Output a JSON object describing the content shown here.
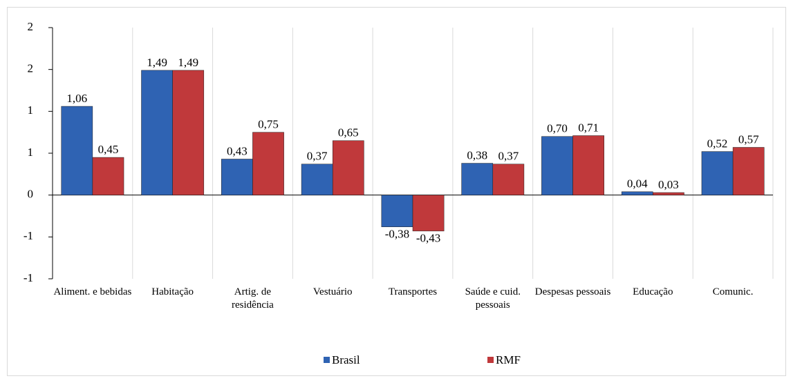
{
  "chart_data": {
    "type": "bar",
    "categories": [
      "Aliment. e bebidas",
      "Habitação",
      "Artig. de residência",
      "Vestuário",
      "Transportes",
      "Saúde e cuid. pessoais",
      "Despesas pessoais",
      "Educação",
      "Comunic."
    ],
    "series": [
      {
        "name": "Brasil",
        "color": "#2f63b3",
        "values": [
          1.06,
          1.49,
          0.43,
          0.37,
          -0.38,
          0.38,
          0.7,
          0.04,
          0.52
        ],
        "value_labels": [
          "1,06",
          "1,49",
          "0,43",
          "0,37",
          "-0,38",
          "0,38",
          "0,70",
          "0,04",
          "0,52"
        ]
      },
      {
        "name": "RMF",
        "color": "#c0393b",
        "values": [
          0.45,
          1.49,
          0.75,
          0.65,
          -0.43,
          0.37,
          0.71,
          0.03,
          0.57
        ],
        "value_labels": [
          "0,45",
          "1,49",
          "0,75",
          "0,65",
          "-0,43",
          "0,37",
          "0,71",
          "0,03",
          "0,57"
        ]
      }
    ],
    "ylim": [
      -1,
      2
    ],
    "yticks": [
      {
        "value": -1,
        "label": "-1"
      },
      {
        "value": -0.5,
        "label": "-1"
      },
      {
        "value": 0,
        "label": "0"
      },
      {
        "value": 0.5,
        "label": "1"
      },
      {
        "value": 1,
        "label": "1"
      },
      {
        "value": 1.5,
        "label": "2"
      },
      {
        "value": 2,
        "label": "2"
      }
    ],
    "grid": true,
    "legend": "bottom",
    "negative_label_color": "#ff0000"
  }
}
